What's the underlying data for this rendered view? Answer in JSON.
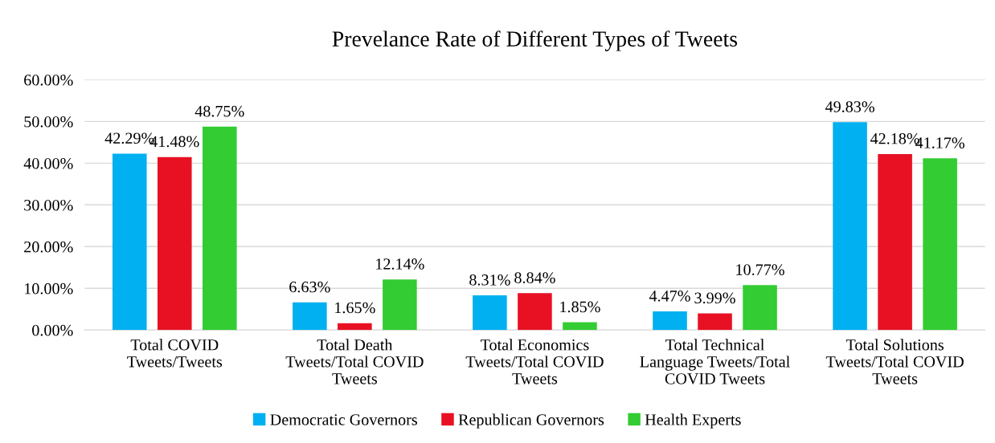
{
  "chart_data": {
    "type": "bar",
    "title": "Prevelance Rate of Different Types of Tweets",
    "categories": [
      "Total COVID\nTweets/Tweets",
      "Total Death\nTweets/Total COVID\nTweets",
      "Total Economics\nTweets/Total COVID\nTweets",
      "Total Technical\nLanguage Tweets/Total\nCOVID Tweets",
      "Total Solutions\nTweets/Total COVID\nTweets"
    ],
    "series": [
      {
        "name": "Democratic Governors",
        "color": "#00b0f0",
        "values": [
          42.29,
          6.63,
          8.31,
          4.47,
          49.83
        ],
        "value_labels": [
          "42.29%",
          "6.63%",
          "8.31%",
          "4.47%",
          "49.83%"
        ]
      },
      {
        "name": "Republican Governors",
        "color": "#e81123",
        "values": [
          41.48,
          1.65,
          8.84,
          3.99,
          42.18
        ],
        "value_labels": [
          "41.48%",
          "1.65%",
          "8.84%",
          "3.99%",
          "42.18%"
        ]
      },
      {
        "name": "Health Experts",
        "color": "#33cc33",
        "values": [
          48.75,
          12.14,
          1.85,
          10.77,
          41.17
        ],
        "value_labels": [
          "48.75%",
          "12.14%",
          "1.85%",
          "10.77%",
          "41.17%"
        ]
      }
    ],
    "ylim": [
      0,
      60
    ],
    "yticks": [
      {
        "value": 0,
        "label": "0.00%"
      },
      {
        "value": 10,
        "label": "10.00%"
      },
      {
        "value": 20,
        "label": "20.00%"
      },
      {
        "value": 30,
        "label": "30.00%"
      },
      {
        "value": 40,
        "label": "40.00%"
      },
      {
        "value": 50,
        "label": "50.00%"
      },
      {
        "value": 60,
        "label": "60.00%"
      }
    ],
    "grid": "y",
    "legend": "bottom"
  }
}
